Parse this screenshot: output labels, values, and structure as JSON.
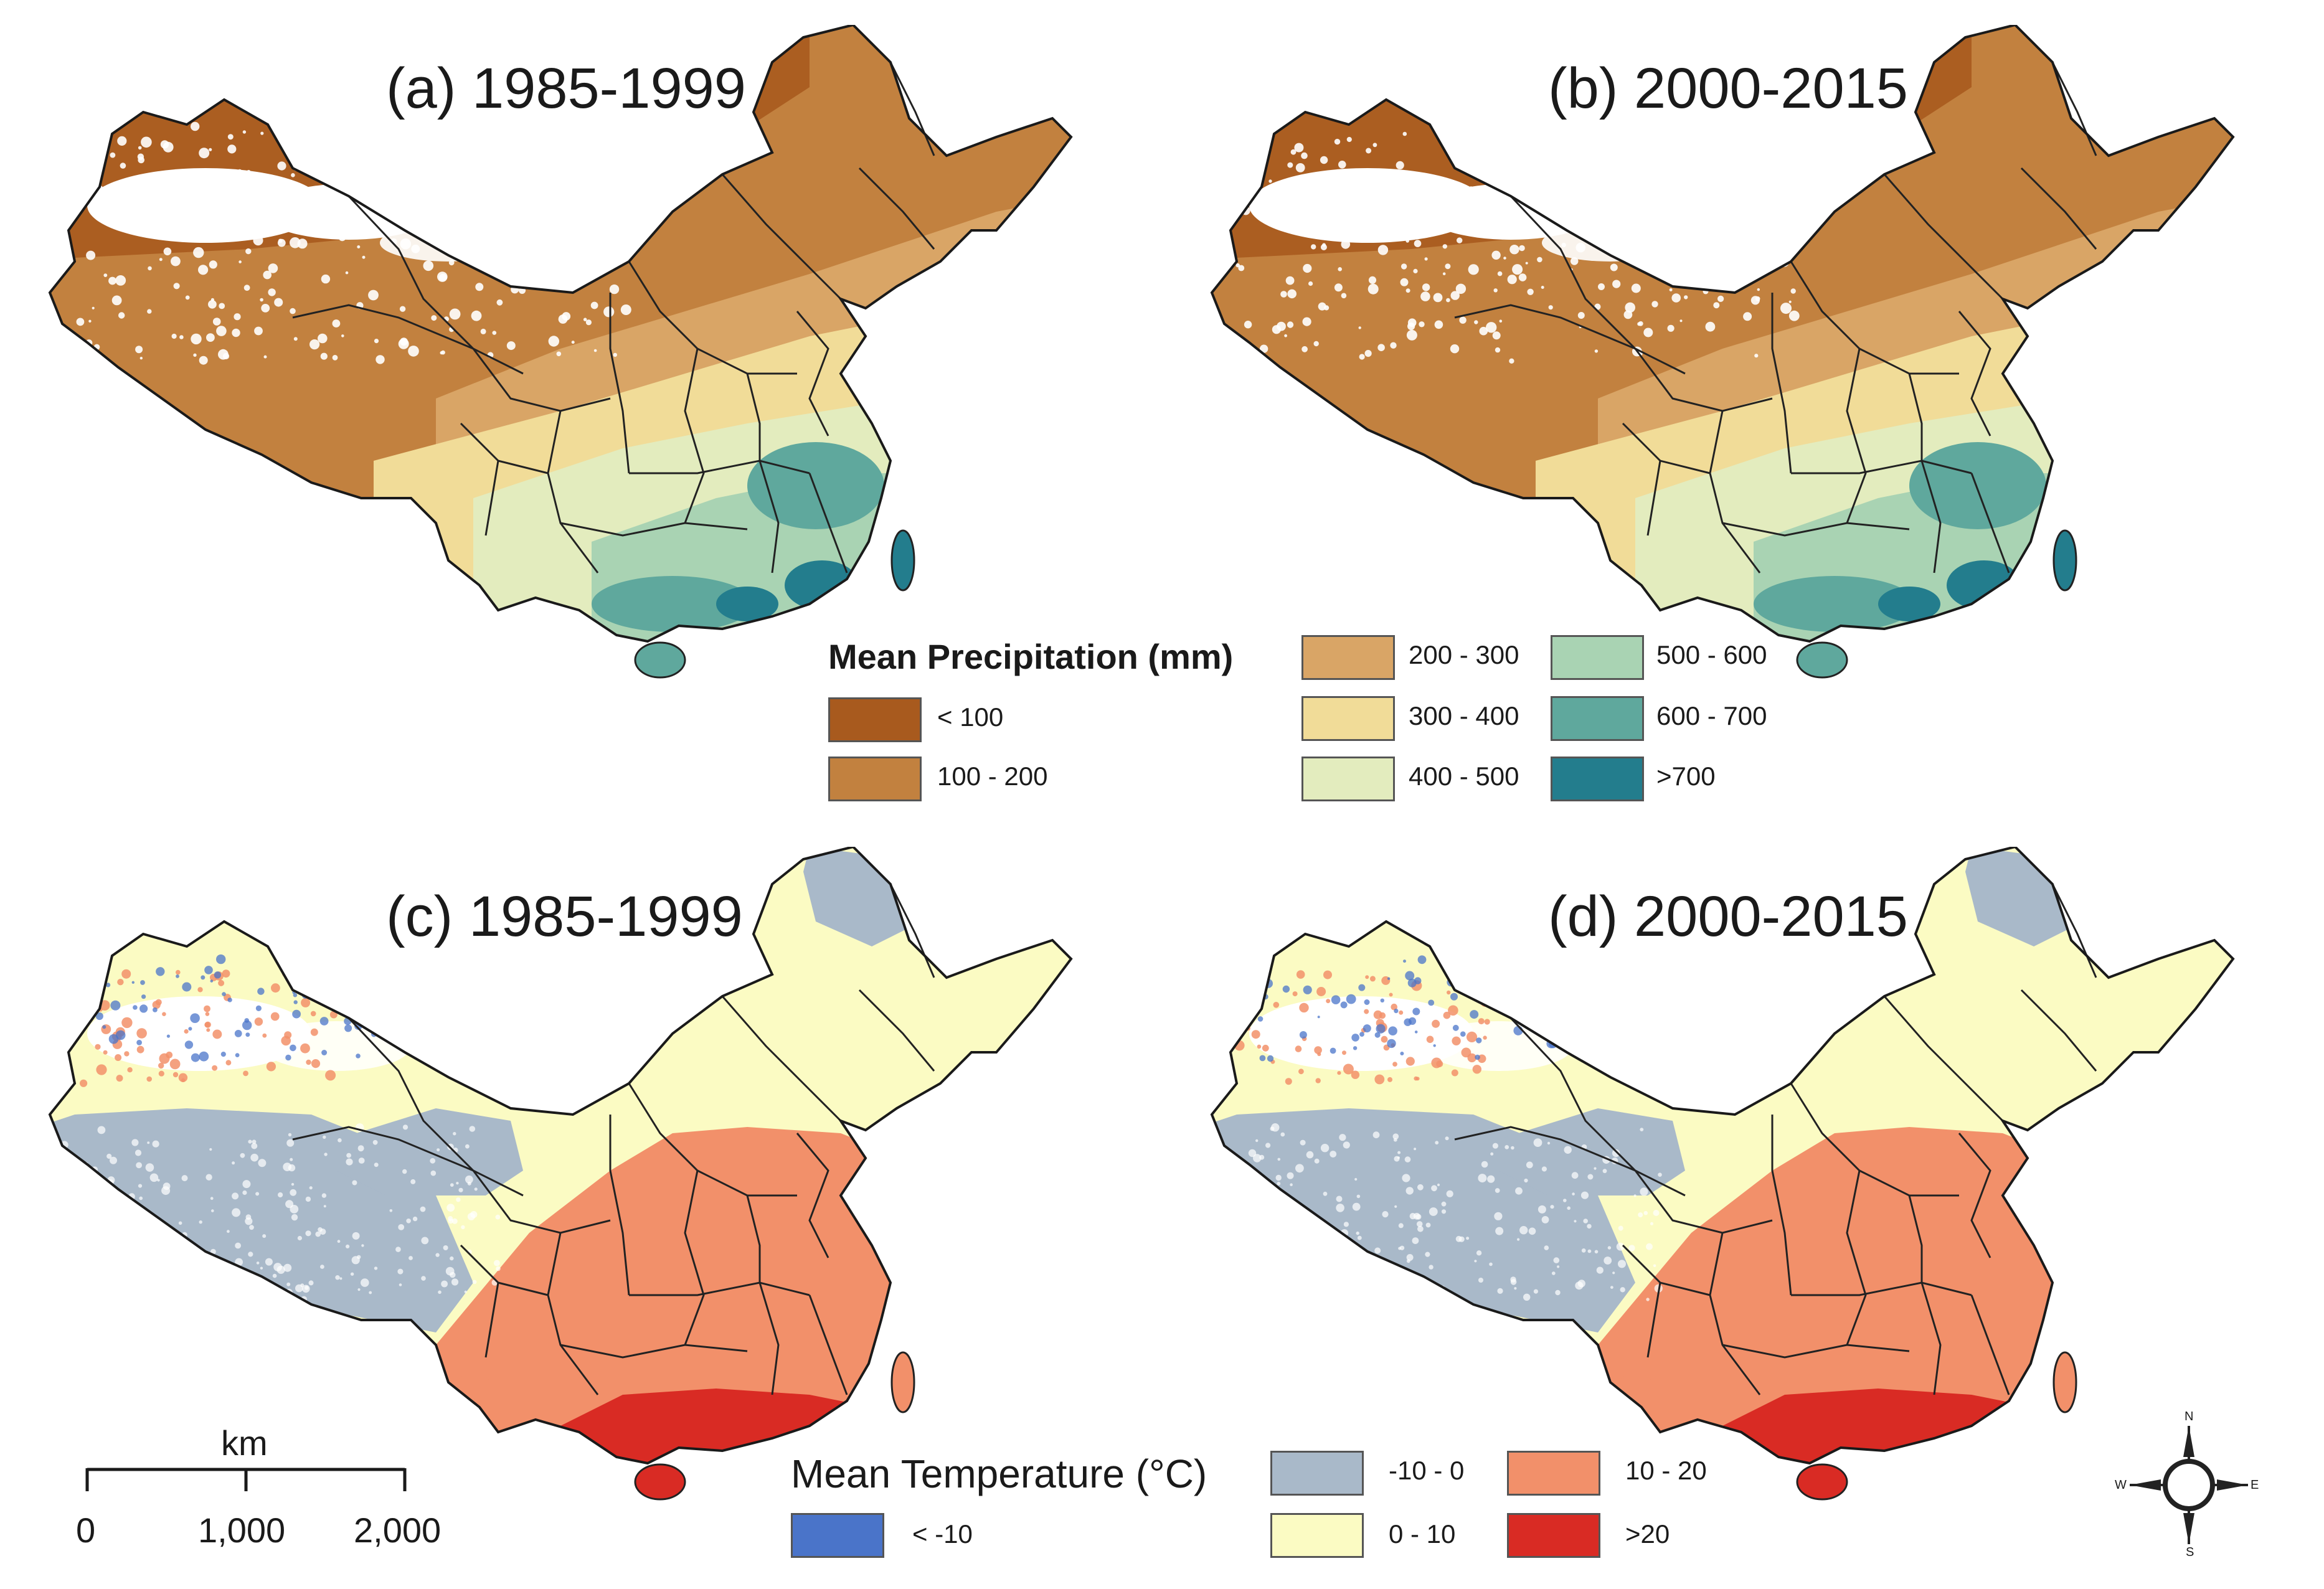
{
  "panels": [
    {
      "id": "a",
      "title": "(a) 1985-1999",
      "variable": "precipitation"
    },
    {
      "id": "b",
      "title": "(b) 2000-2015",
      "variable": "precipitation"
    },
    {
      "id": "c",
      "title": "(c) 1985-1999",
      "variable": "temperature"
    },
    {
      "id": "d",
      "title": "(d) 2000-2015",
      "variable": "temperature"
    }
  ],
  "precipitation_legend": {
    "title": "Mean Precipitation (mm)",
    "classes": [
      {
        "label": "< 100",
        "color": "#a85a1e"
      },
      {
        "label": "100 - 200",
        "color": "#c2813f"
      },
      {
        "label": "200 - 300",
        "color": "#d9a566"
      },
      {
        "label": "300 - 400",
        "color": "#f1dc98"
      },
      {
        "label": "400 - 500",
        "color": "#e3ecbe"
      },
      {
        "label": "500 - 600",
        "color": "#a9d3b3"
      },
      {
        "label": "600 - 700",
        "color": "#5fa89d"
      },
      {
        "label": ">700",
        "color": "#237d8d"
      }
    ]
  },
  "temperature_legend": {
    "title": "Mean Temperature (°C)",
    "classes": [
      {
        "label": "< -10",
        "color": "#4a74c9"
      },
      {
        "label": "-10 - 0",
        "color": "#a9b9c9"
      },
      {
        "label": "0 - 10",
        "color": "#fbfbc3"
      },
      {
        "label": "10 - 20",
        "color": "#f2906a"
      },
      {
        "label": ">20",
        "color": "#d92b24"
      }
    ]
  },
  "scale_bar": {
    "unit": "km",
    "ticks": [
      "0",
      "1,000",
      "2,000"
    ]
  },
  "compass": {
    "n": "N",
    "s": "S",
    "e": "E",
    "w": "W"
  }
}
